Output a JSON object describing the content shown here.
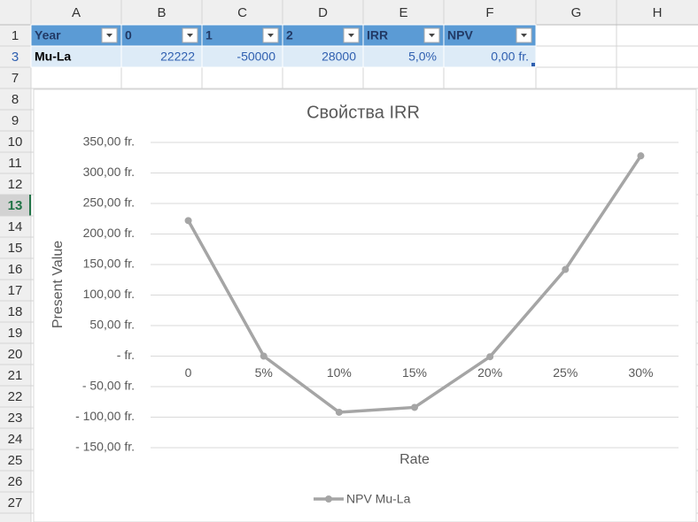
{
  "sheet": {
    "columns": [
      "A",
      "B",
      "C",
      "D",
      "E",
      "F",
      "G",
      "H"
    ],
    "rows": [
      "1",
      "3",
      "7",
      "8",
      "9",
      "10",
      "11",
      "12",
      "13",
      "14",
      "15",
      "16",
      "17",
      "18",
      "19",
      "20",
      "21",
      "22",
      "23",
      "24",
      "25",
      "26",
      "27"
    ],
    "table": {
      "header": [
        "Year",
        "0",
        "1",
        "2",
        "IRR",
        "NPV"
      ],
      "row": [
        "Mu-La",
        22222,
        -50000,
        28000,
        "5,0%",
        "0,00 fr."
      ]
    }
  },
  "chart_data": {
    "type": "line",
    "title": "Свойства IRR",
    "x_label": "Rate",
    "y_label": "Present Value",
    "categories": [
      "0",
      "5%",
      "10%",
      "15%",
      "20%",
      "25%",
      "30%"
    ],
    "series": [
      {
        "name": "NPV Mu-La",
        "color": "#a5a5a5",
        "values": [
          222,
          0,
          -92,
          -84,
          -1,
          142,
          328
        ]
      }
    ],
    "ylim": [
      -150,
      350
    ],
    "yticks": [
      {
        "value": -150,
        "label": "- 150,00 fr."
      },
      {
        "value": -100,
        "label": "- 100,00 fr."
      },
      {
        "value": -50,
        "label": "- 50,00 fr."
      },
      {
        "value": 0,
        "label": "-    fr."
      },
      {
        "value": 50,
        "label": "50,00 fr."
      },
      {
        "value": 100,
        "label": "100,00 fr."
      },
      {
        "value": 150,
        "label": "150,00 fr."
      },
      {
        "value": 200,
        "label": "200,00 fr."
      },
      {
        "value": 250,
        "label": "250,00 fr."
      },
      {
        "value": 300,
        "label": "300,00 fr."
      },
      {
        "value": 350,
        "label": "350,00 fr."
      }
    ],
    "grid": true,
    "legend": "bottom"
  }
}
